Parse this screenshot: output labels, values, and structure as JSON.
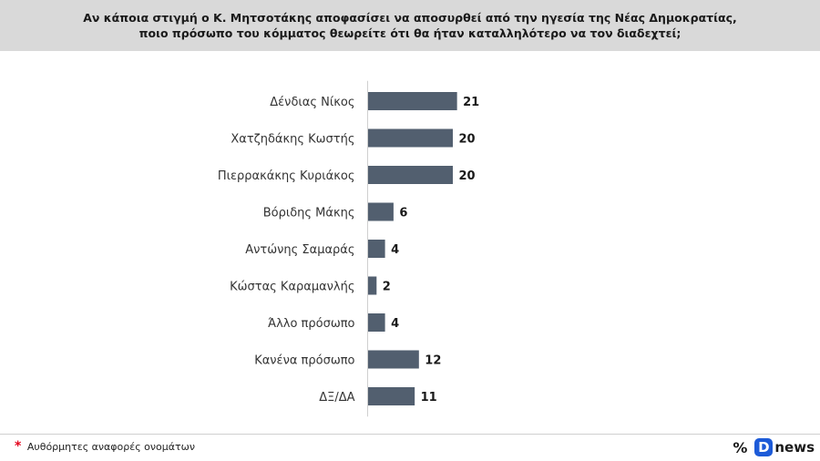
{
  "header": {
    "line1": "Αν κάποια στιγμή ο Κ. Μητσοτάκης αποφασίσει να αποσυρθεί από την ηγεσία της Νέας Δημοκρατίας,",
    "line2": "ποιο πρόσωπο του κόμματος θεωρείτε ότι θα ήταν καταλληλότερο να τον διαδεχτεί;"
  },
  "chart_data": {
    "type": "bar",
    "orientation": "horizontal",
    "title": "",
    "xlabel": "",
    "ylabel": "",
    "categories": [
      "Δένδιας Νίκος",
      "Χατζηδάκης Κωστής",
      "Πιερρακάκης Κυριάκος",
      "Βόριδης Μάκης",
      "Αντώνης Σαμαράς",
      "Κώστας Καραμανλής",
      "Άλλο πρόσωπο",
      "Κανένα πρόσωπο",
      "ΔΞ/ΔΑ"
    ],
    "values": [
      21,
      20,
      20,
      6,
      4,
      2,
      4,
      12,
      11
    ],
    "xlim": [
      0,
      100
    ],
    "grid": false,
    "legend": "none",
    "bar_color": "#525f6f"
  },
  "footnote": {
    "star": "*",
    "text": "Αυθόρμητες αναφορές ονομάτων"
  },
  "brand": {
    "percent_symbol": "%",
    "d_letter": "D",
    "name": "news",
    "d_color": "#1d5bd8"
  }
}
